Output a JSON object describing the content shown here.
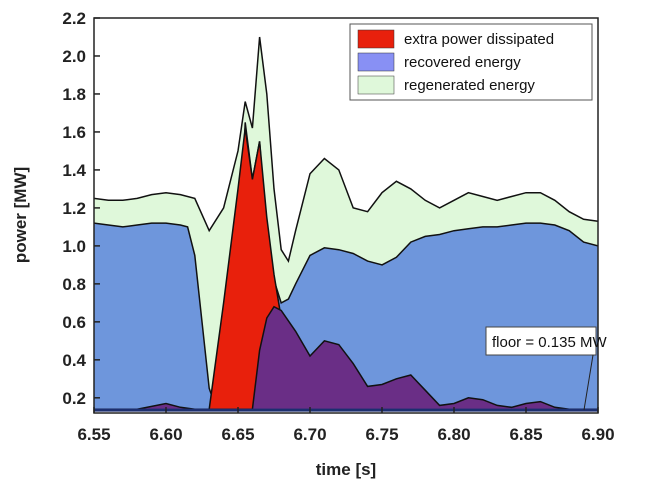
{
  "chart_data": {
    "type": "area",
    "xlabel": "time [s]",
    "ylabel": "power [MW]",
    "xlim": [
      6.55,
      6.9
    ],
    "ylim": [
      0.12,
      2.2
    ],
    "xticks": [
      "6.55",
      "6.60",
      "6.65",
      "6.70",
      "6.75",
      "6.80",
      "6.85",
      "6.90"
    ],
    "yticks": [
      "0.2",
      "0.4",
      "0.6",
      "0.8",
      "1.0",
      "1.2",
      "1.4",
      "1.6",
      "1.8",
      "2.0",
      "2.2"
    ],
    "grid": false,
    "legend_position": "top-right",
    "floor": 0.135,
    "series": [
      {
        "name": "regenerated energy",
        "color": "#dff8da",
        "x": [
          6.55,
          6.56,
          6.57,
          6.58,
          6.59,
          6.6,
          6.61,
          6.62,
          6.63,
          6.64,
          6.65,
          6.655,
          6.66,
          6.665,
          6.67,
          6.675,
          6.68,
          6.685,
          6.69,
          6.7,
          6.71,
          6.72,
          6.73,
          6.74,
          6.75,
          6.76,
          6.77,
          6.78,
          6.79,
          6.8,
          6.81,
          6.82,
          6.83,
          6.84,
          6.85,
          6.86,
          6.87,
          6.88,
          6.89,
          6.9
        ],
        "values": [
          1.25,
          1.24,
          1.24,
          1.25,
          1.27,
          1.28,
          1.27,
          1.25,
          1.08,
          1.2,
          1.5,
          1.76,
          1.62,
          2.1,
          1.8,
          1.3,
          0.98,
          0.92,
          1.08,
          1.38,
          1.46,
          1.4,
          1.2,
          1.18,
          1.28,
          1.34,
          1.3,
          1.24,
          1.2,
          1.24,
          1.28,
          1.26,
          1.24,
          1.26,
          1.28,
          1.28,
          1.24,
          1.18,
          1.14,
          1.13
        ]
      },
      {
        "name": "recovered energy",
        "color": "#6e96dc",
        "x": [
          6.55,
          6.56,
          6.57,
          6.58,
          6.59,
          6.6,
          6.61,
          6.615,
          6.62,
          6.625,
          6.63,
          6.635,
          6.64,
          6.65,
          6.655,
          6.66,
          6.665,
          6.67,
          6.675,
          6.68,
          6.685,
          6.69,
          6.7,
          6.71,
          6.72,
          6.73,
          6.74,
          6.75,
          6.76,
          6.77,
          6.78,
          6.79,
          6.8,
          6.81,
          6.82,
          6.83,
          6.84,
          6.85,
          6.86,
          6.87,
          6.88,
          6.89,
          6.9
        ],
        "values": [
          1.12,
          1.11,
          1.1,
          1.11,
          1.12,
          1.12,
          1.11,
          1.1,
          0.95,
          0.6,
          0.25,
          0.14,
          0.2,
          0.75,
          1.65,
          1.35,
          1.55,
          1.05,
          0.82,
          0.7,
          0.72,
          0.8,
          0.95,
          0.99,
          0.98,
          0.96,
          0.92,
          0.9,
          0.94,
          1.02,
          1.05,
          1.06,
          1.08,
          1.09,
          1.1,
          1.1,
          1.11,
          1.12,
          1.12,
          1.11,
          1.08,
          1.02,
          1.0
        ]
      },
      {
        "name": "extra power dissipated",
        "color": "#e8200c",
        "x": [
          6.63,
          6.64,
          6.645,
          6.65,
          6.655,
          6.66,
          6.665,
          6.67,
          6.675,
          6.68,
          6.685
        ],
        "values": [
          0.14,
          0.7,
          1.0,
          1.3,
          1.62,
          1.35,
          1.55,
          1.15,
          0.85,
          0.62,
          0.55
        ]
      },
      {
        "name": "purple overlap",
        "color": "#6a2e86",
        "x": [
          6.55,
          6.58,
          6.6,
          6.61,
          6.62,
          6.63,
          6.64,
          6.65,
          6.655,
          6.66,
          6.665,
          6.67,
          6.675,
          6.68,
          6.69,
          6.7,
          6.71,
          6.72,
          6.73,
          6.74,
          6.75,
          6.76,
          6.77,
          6.78,
          6.79,
          6.8,
          6.81,
          6.82,
          6.83,
          6.84,
          6.85,
          6.86,
          6.87,
          6.88,
          6.9
        ],
        "values": [
          0.14,
          0.14,
          0.17,
          0.15,
          0.14,
          0.14,
          0.14,
          0.14,
          0.14,
          0.14,
          0.45,
          0.62,
          0.68,
          0.66,
          0.55,
          0.42,
          0.5,
          0.48,
          0.38,
          0.26,
          0.27,
          0.3,
          0.32,
          0.24,
          0.16,
          0.17,
          0.2,
          0.19,
          0.16,
          0.15,
          0.17,
          0.18,
          0.15,
          0.14,
          0.14
        ]
      }
    ],
    "annotation": "floor = 0.135 MW"
  },
  "legend": {
    "items": [
      {
        "label": "extra power dissipated",
        "color": "#e8200c"
      },
      {
        "label": "recovered energy",
        "color": "#8890f4"
      },
      {
        "label": "regenerated energy",
        "color": "#dff8da"
      }
    ]
  }
}
